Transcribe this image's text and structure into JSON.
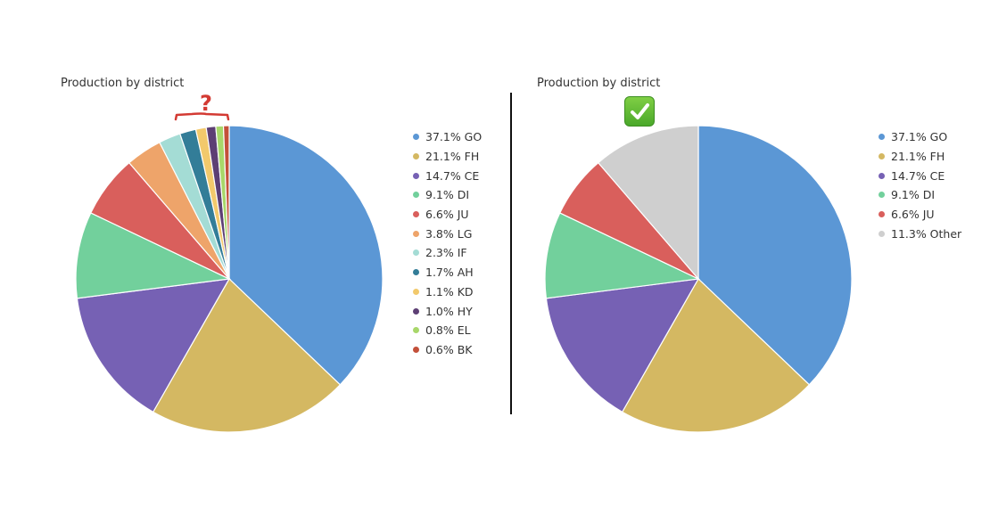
{
  "chart_data": [
    {
      "type": "pie",
      "title": "Production by district",
      "legend_position": "right",
      "slices": [
        {
          "label": "GO",
          "value": 37.1,
          "legend": "37.1% GO",
          "color": "#5b97d5"
        },
        {
          "label": "FH",
          "value": 21.1,
          "legend": "21.1% FH",
          "color": "#d4b862"
        },
        {
          "label": "CE",
          "value": 14.7,
          "legend": "14.7% CE",
          "color": "#7661b4"
        },
        {
          "label": "DI",
          "value": 9.1,
          "legend": "9.1% DI",
          "color": "#72d09c"
        },
        {
          "label": "JU",
          "value": 6.6,
          "legend": "6.6% JU",
          "color": "#d95f5c"
        },
        {
          "label": "LG",
          "value": 3.8,
          "legend": "3.8% LG",
          "color": "#eea46a"
        },
        {
          "label": "IF",
          "value": 2.3,
          "legend": "2.3% IF",
          "color": "#a4dcd5"
        },
        {
          "label": "AH",
          "value": 1.7,
          "legend": "1.7% AH",
          "color": "#337d98"
        },
        {
          "label": "KD",
          "value": 1.1,
          "legend": "1.1% KD",
          "color": "#f2c96c"
        },
        {
          "label": "HY",
          "value": 1.0,
          "legend": "1.0% HY",
          "color": "#5d3f74"
        },
        {
          "label": "EL",
          "value": 0.8,
          "legend": "0.8% EL",
          "color": "#a8d76a"
        },
        {
          "label": "BK",
          "value": 0.6,
          "legend": "0.6% BK",
          "color": "#c3503a"
        }
      ]
    },
    {
      "type": "pie",
      "title": "Production by district",
      "legend_position": "right",
      "slices": [
        {
          "label": "GO",
          "value": 37.1,
          "legend": "37.1% GO",
          "color": "#5b97d5"
        },
        {
          "label": "FH",
          "value": 21.1,
          "legend": "21.1% FH",
          "color": "#d4b862"
        },
        {
          "label": "CE",
          "value": 14.7,
          "legend": "14.7% CE",
          "color": "#7661b4"
        },
        {
          "label": "DI",
          "value": 9.1,
          "legend": "9.1% DI",
          "color": "#72d09c"
        },
        {
          "label": "JU",
          "value": 6.6,
          "legend": "6.6% JU",
          "color": "#d95f5c"
        },
        {
          "label": "Other",
          "value": 11.3,
          "legend": "11.3% Other",
          "color": "#cfcfcf"
        }
      ]
    }
  ],
  "annotations": {
    "left_mark": "?",
    "right_mark_icon": "check-mark-icon",
    "left_mark_color": "#d33a33",
    "right_mark_color": "#5cb836"
  }
}
